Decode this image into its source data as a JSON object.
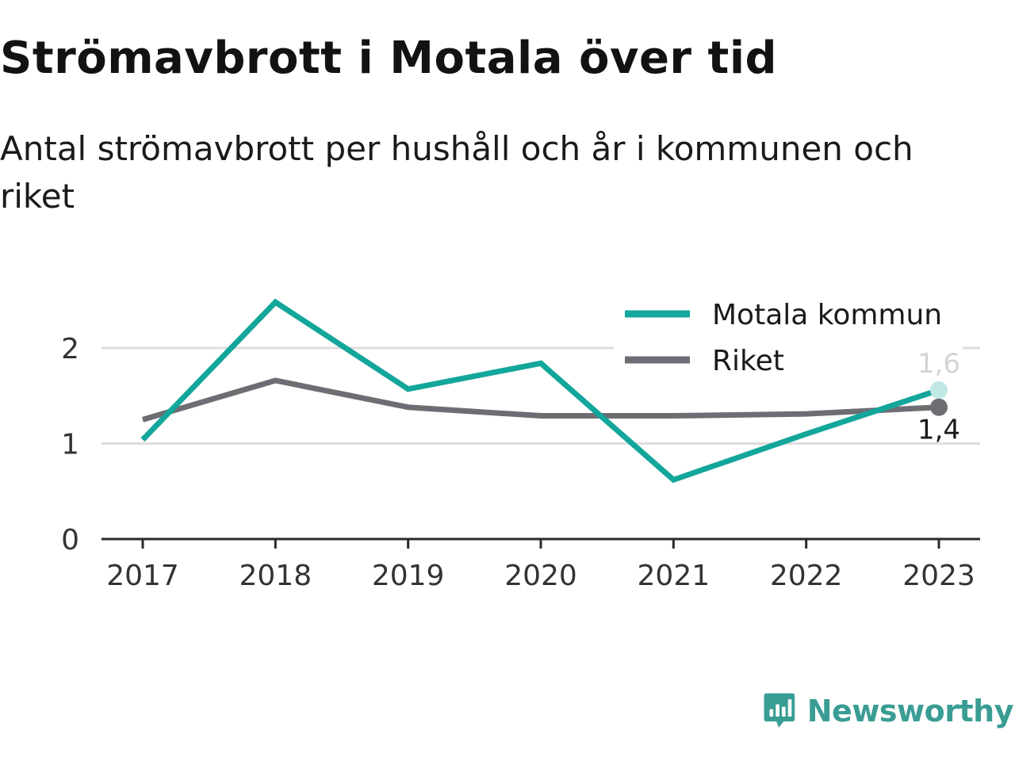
{
  "title": "Strömavbrott i Motala över tid",
  "subtitle": "Antal strömavbrott per hushåll och år i kommunen och riket",
  "chart_data": {
    "type": "line",
    "title": "Strömavbrott i Motala över tid",
    "subtitle": "Antal strömavbrott per hushåll och år i kommunen och riket",
    "xlabel": "",
    "ylabel": "",
    "categories": [
      "2017",
      "2018",
      "2019",
      "2020",
      "2021",
      "2022",
      "2023"
    ],
    "yticks": [
      "0",
      "1",
      "2"
    ],
    "ylim": [
      0,
      2.5
    ],
    "grid": true,
    "legend_position": "top-right",
    "series": [
      {
        "name": "Motala kommun",
        "color": "#13a69b",
        "values": [
          1.04,
          2.48,
          1.57,
          1.84,
          0.62,
          1.1,
          1.56
        ],
        "end_label": "1,6"
      },
      {
        "name": "Riket",
        "color": "#6e6d73",
        "values": [
          1.25,
          1.66,
          1.38,
          1.29,
          1.29,
          1.31,
          1.38
        ],
        "end_label": "1,4"
      }
    ]
  },
  "brand": {
    "name": "Newsworthy",
    "color": "#3a9d94",
    "icon": "newsworthy-logo-icon"
  }
}
